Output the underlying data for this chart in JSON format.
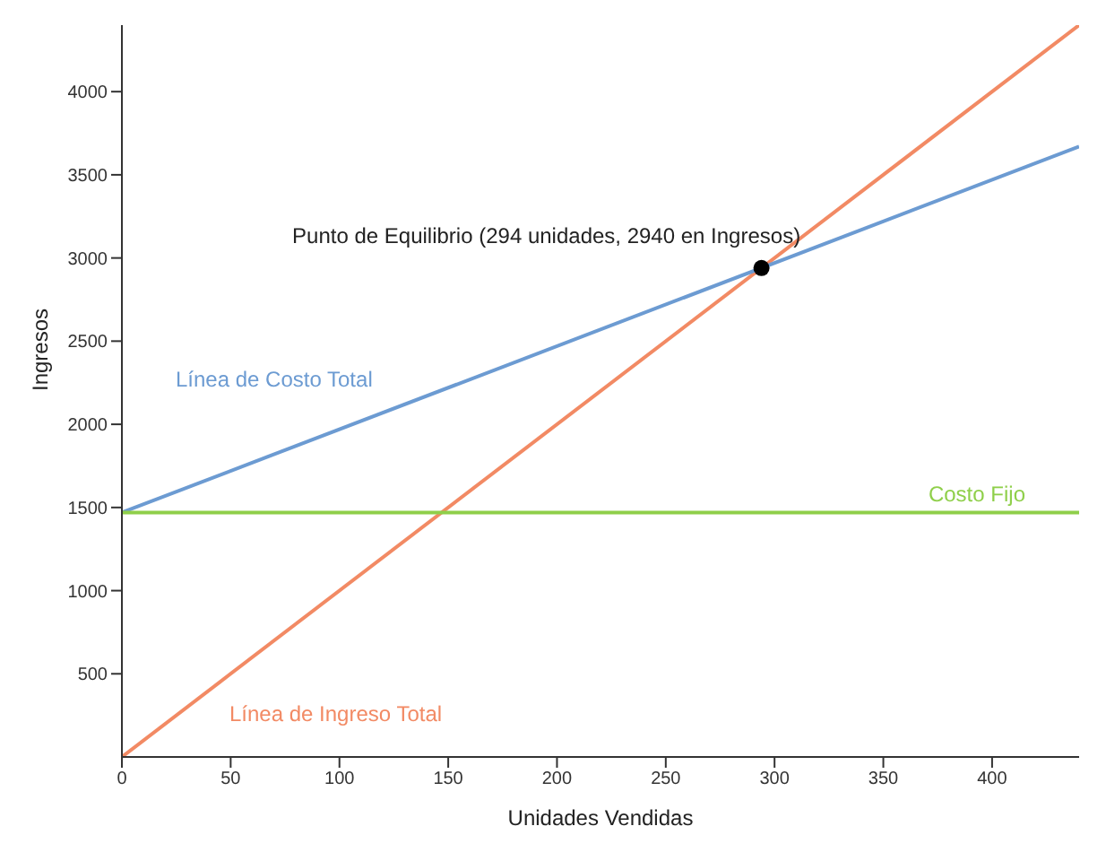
{
  "chart_data": {
    "type": "line",
    "xlabel": "Unidades Vendidas",
    "ylabel": "Ingresos",
    "xlim": [
      0,
      440
    ],
    "ylim": [
      0,
      4400
    ],
    "xticks": [
      0,
      50,
      100,
      150,
      200,
      250,
      300,
      350,
      400
    ],
    "yticks": [
      500,
      1000,
      1500,
      2000,
      2500,
      3000,
      3500,
      4000
    ],
    "grid": false,
    "legend": false,
    "marker": "none",
    "line_style": "solid",
    "series": [
      {
        "name": "Línea de Ingreso Total",
        "color": "#f28a64",
        "x": [
          0,
          440
        ],
        "values": [
          0,
          4400
        ]
      },
      {
        "name": "Línea de Costo Total",
        "color": "#6c9bd2",
        "x": [
          0,
          440
        ],
        "values": [
          1470,
          3670
        ]
      },
      {
        "name": "Costo Fijo",
        "color": "#8fcf4a",
        "x": [
          0,
          440
        ],
        "values": [
          1470,
          1470
        ]
      },
      {
        "type": "scatter",
        "color": "#000000",
        "x": [
          294
        ],
        "values": [
          2940
        ],
        "marker": "circle"
      }
    ],
    "annotations": [
      {
        "text": "Punto de Equilibrio (294 unidades, 2940 en Ingresos)",
        "x": 294,
        "y": 2940
      }
    ]
  }
}
